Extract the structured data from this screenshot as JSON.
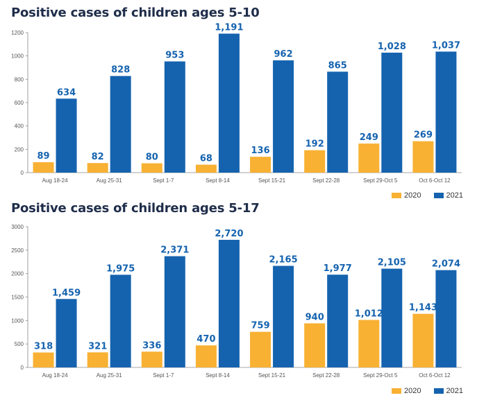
{
  "colors": {
    "s2020": "#f8b133",
    "s2021": "#1563af",
    "label": "#1563af",
    "axis": "#555555"
  },
  "legend": {
    "label_2020": "2020",
    "label_2021": "2021"
  },
  "chart_data": [
    {
      "type": "bar",
      "title": "Positive cases of children ages 5-10",
      "categories": [
        "Aug 18-24",
        "Aug 25-31",
        "Sept 1-7",
        "Sept 8-14",
        "Sept 15-21",
        "Sept 22-28",
        "Sept 29-Oct 5",
        "Oct 6-Oct 12"
      ],
      "series": [
        {
          "name": "2020",
          "values": [
            89,
            82,
            80,
            68,
            136,
            192,
            249,
            269
          ],
          "labels": [
            "89",
            "82",
            "80",
            "68",
            "136",
            "192",
            "249",
            "269"
          ]
        },
        {
          "name": "2021",
          "values": [
            634,
            828,
            953,
            1191,
            962,
            865,
            1028,
            1037
          ],
          "labels": [
            "634",
            "828",
            "953",
            "1,191",
            "962",
            "865",
            "1,028",
            "1,037"
          ]
        }
      ],
      "ylim": [
        0,
        1200
      ],
      "yticks": [
        0,
        200,
        400,
        600,
        800,
        1000,
        1200
      ],
      "grid": false,
      "legend_position": "bottom-right"
    },
    {
      "type": "bar",
      "title": "Positive cases of children ages 5-17",
      "categories": [
        "Aug 18-24",
        "Aug 25-31",
        "Sept 1-7",
        "Sept 8-14",
        "Sept 15-21",
        "Sept 22-28",
        "Sept 29-Oct 5",
        "Oct 6-Oct 12"
      ],
      "series": [
        {
          "name": "2020",
          "values": [
            318,
            321,
            336,
            470,
            759,
            940,
            1012,
            1143
          ],
          "labels": [
            "318",
            "321",
            "336",
            "470",
            "759",
            "940",
            "1,012",
            "1,143"
          ]
        },
        {
          "name": "2021",
          "values": [
            1459,
            1975,
            2371,
            2720,
            2165,
            1977,
            2105,
            2074
          ],
          "labels": [
            "1,459",
            "1,975",
            "2,371",
            "2,720",
            "2,165",
            "1,977",
            "2,105",
            "2,074"
          ]
        }
      ],
      "ylim": [
        0,
        3000
      ],
      "yticks": [
        0,
        500,
        1000,
        1500,
        2000,
        2500,
        3000
      ],
      "grid": false,
      "legend_position": "bottom-right"
    }
  ]
}
